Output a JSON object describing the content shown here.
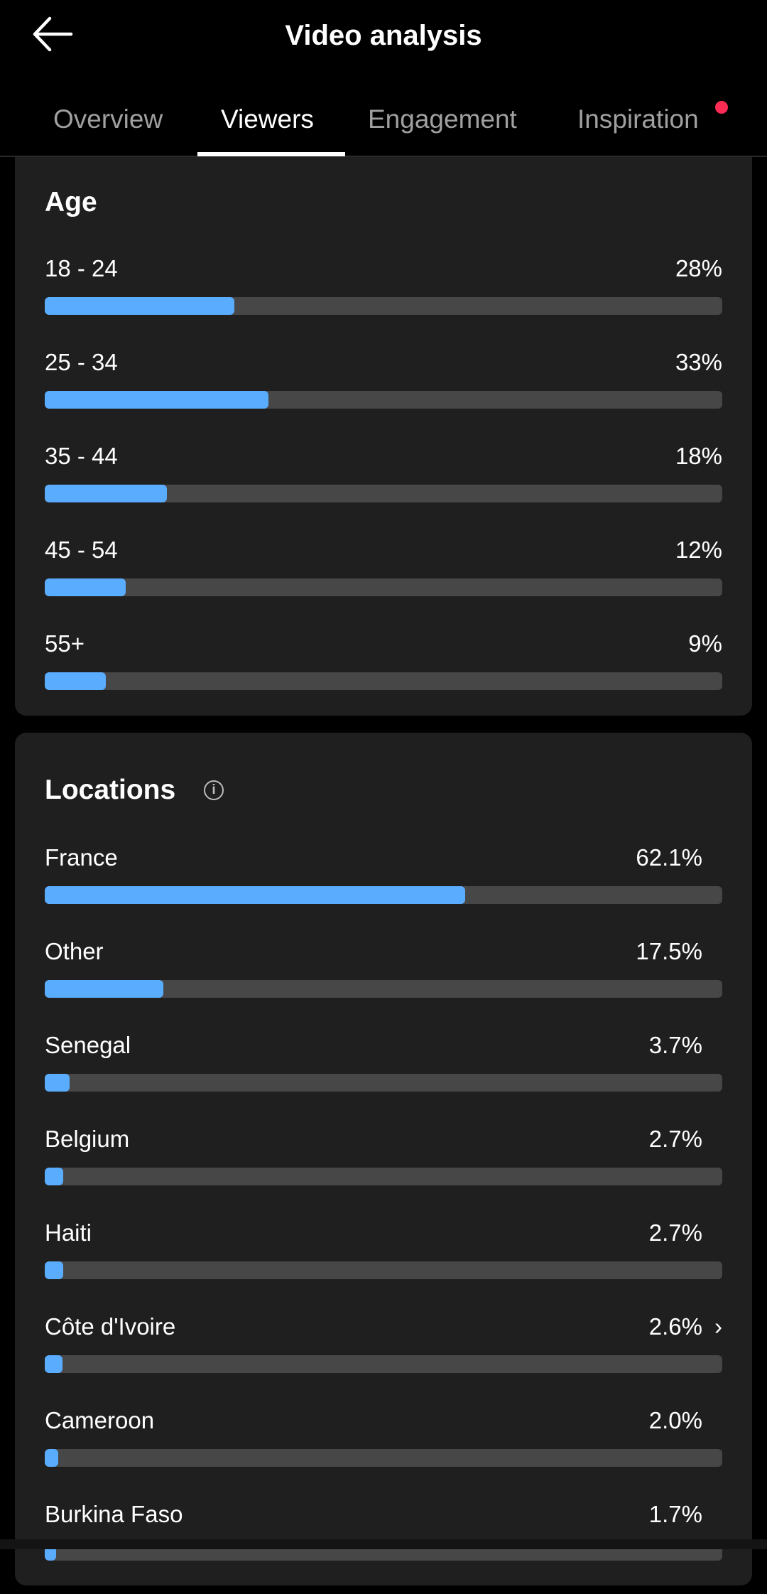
{
  "header": {
    "title": "Video analysis",
    "back_icon": "arrow-left-icon"
  },
  "tabs": [
    {
      "label": "Overview"
    },
    {
      "label": "Viewers",
      "active": true
    },
    {
      "label": "Engagement"
    },
    {
      "label": "Inspiration",
      "badge_dot": true
    }
  ],
  "colors": {
    "accent_bar": "#5aacff",
    "track": "#474747",
    "badge": "#fe2c55",
    "card": "#1f1f1f"
  },
  "age": {
    "title": "Age",
    "items": [
      {
        "label": "18 - 24",
        "value": "28%",
        "fraction": 0.28
      },
      {
        "label": "25 - 34",
        "value": "33%",
        "fraction": 0.33
      },
      {
        "label": "35 - 44",
        "value": "18%",
        "fraction": 0.18
      },
      {
        "label": "45 - 54",
        "value": "12%",
        "fraction": 0.12
      },
      {
        "label": "55+",
        "value": "9%",
        "fraction": 0.09
      }
    ]
  },
  "locations": {
    "title": "Locations",
    "info_icon": "info-circle-icon",
    "items": [
      {
        "label": "France",
        "value": "62.1%",
        "fraction": 0.621
      },
      {
        "label": "Other",
        "value": "17.5%",
        "fraction": 0.175
      },
      {
        "label": "Senegal",
        "value": "3.7%",
        "fraction": 0.037
      },
      {
        "label": "Belgium",
        "value": "2.7%",
        "fraction": 0.027
      },
      {
        "label": "Haiti",
        "value": "2.7%",
        "fraction": 0.027
      },
      {
        "label": "Côte d'Ivoire",
        "value": "2.6%",
        "fraction": 0.026,
        "chevron": "›"
      },
      {
        "label": "Cameroon",
        "value": "2.0%",
        "fraction": 0.02
      },
      {
        "label": "Burkina Faso",
        "value": "1.7%",
        "fraction": 0.017
      }
    ]
  }
}
